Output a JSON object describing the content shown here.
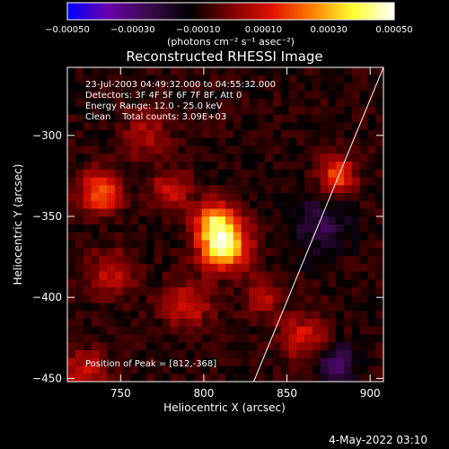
{
  "colorbar": {
    "tick_labels": [
      "-0.00050",
      "-0.00030",
      "-0.00010",
      "0.00010",
      "0.00030",
      "0.00050"
    ],
    "unit_label": "(photons cm⁻² s⁻¹ asec⁻²)",
    "range": [
      -0.0005,
      0.0005
    ],
    "colormap": [
      "#0000ff",
      "#6a00aa",
      "#3a0a4a",
      "#000000",
      "#7a0000",
      "#e01000",
      "#ff8000",
      "#ffff30",
      "#ffffff"
    ]
  },
  "chart_data": {
    "type": "heatmap",
    "title": "Reconstructed RHESSI Image",
    "xlabel": "Heliocentric X (arcsec)",
    "ylabel": "Heliocentric Y (arcsec)",
    "xlim": [
      718,
      908
    ],
    "ylim": [
      -452,
      -258
    ],
    "x_ticks": [
      750,
      800,
      850,
      900
    ],
    "x_tick_labels": [
      "750",
      "800",
      "850",
      "900"
    ],
    "y_ticks": [
      -300,
      -350,
      -400,
      -450
    ],
    "y_tick_labels": [
      "-300",
      "-350",
      "-400",
      "-450"
    ],
    "annotations": [
      "23-Jul-2003 04:49:32.000 to 04:55:32.000",
      "Detectors: 3F 4F 5F 6F 7F 8F, Att 0",
      "Energy Range: 12.0 - 25.0 keV",
      "Clean    Total counts: 3.09E+03"
    ],
    "peak_label": "Position of Peak = [812,-368]",
    "peak": [
      812,
      -368
    ],
    "limb_line": {
      "x": [
        830,
        908
      ],
      "y": [
        -452,
        -258
      ]
    },
    "sources": [
      {
        "x": 812,
        "y": -368,
        "amp": 0.00055,
        "sigma": 10
      },
      {
        "x": 806,
        "y": -352,
        "amp": 0.00035,
        "sigma": 8
      },
      {
        "x": 738,
        "y": -335,
        "amp": 0.0003,
        "sigma": 9
      },
      {
        "x": 780,
        "y": -333,
        "amp": 0.0002,
        "sigma": 8
      },
      {
        "x": 745,
        "y": -385,
        "amp": 0.00018,
        "sigma": 10
      },
      {
        "x": 790,
        "y": -405,
        "amp": 0.0002,
        "sigma": 10
      },
      {
        "x": 835,
        "y": -400,
        "amp": 0.00016,
        "sigma": 8
      },
      {
        "x": 765,
        "y": -300,
        "amp": 0.00015,
        "sigma": 10
      },
      {
        "x": 880,
        "y": -325,
        "amp": 0.00028,
        "sigma": 8
      },
      {
        "x": 860,
        "y": -425,
        "amp": 0.0002,
        "sigma": 10
      },
      {
        "x": 728,
        "y": -445,
        "amp": 0.0002,
        "sigma": 9
      },
      {
        "x": 870,
        "y": -355,
        "amp": -0.00015,
        "sigma": 12
      },
      {
        "x": 880,
        "y": -440,
        "amp": -0.0002,
        "sigma": 8
      }
    ]
  },
  "footer": {
    "timestamp": "4-May-2022 03:10"
  }
}
